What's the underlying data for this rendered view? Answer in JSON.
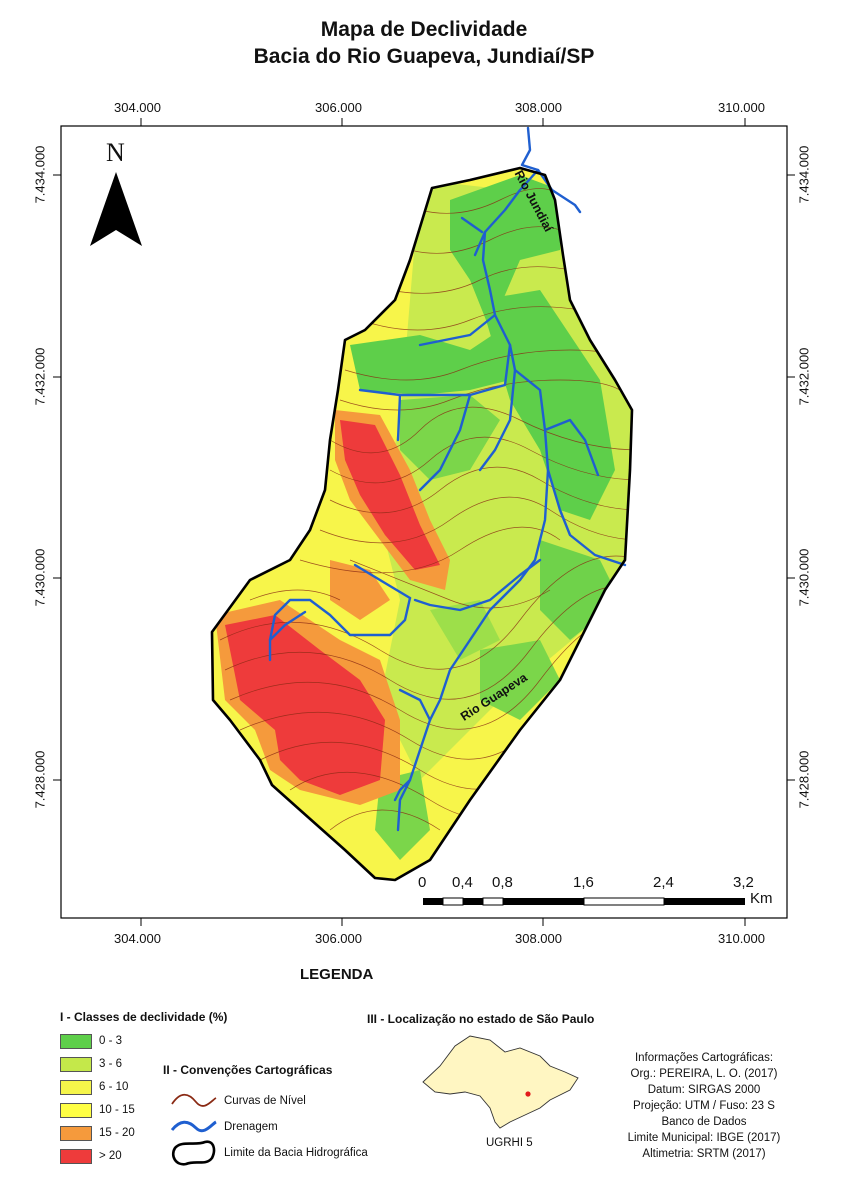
{
  "title_line1": "Mapa de Declividade",
  "title_line2": "Bacia do Rio Guapeva, Jundiaí/SP",
  "north_label": "N",
  "x_ticks": [
    "304.000",
    "306.000",
    "308.000",
    "310.000"
  ],
  "y_ticks": [
    "7.434.000",
    "7.432.000",
    "7.430.000",
    "7.428.000"
  ],
  "river_labels": {
    "jundiai": "Rio Jundiaí",
    "guapeva": "Rio Guapeva"
  },
  "scalebar": {
    "labels": [
      "0",
      "0,4",
      "0,8",
      "1,6",
      "2,4",
      "3,2"
    ],
    "unit": "Km"
  },
  "legend": {
    "heading": "LEGENDA",
    "section1_title": "I - Classes de declividade (%)",
    "classes": [
      {
        "label": "0 - 3",
        "color": "#5ecf4a"
      },
      {
        "label": "3 - 6",
        "color": "#c4e84a"
      },
      {
        "label": "6 - 10",
        "color": "#f5f54a"
      },
      {
        "label": "10 - 15",
        "color": "#ffff44"
      },
      {
        "label": "15 - 20",
        "color": "#f59a3c"
      },
      {
        "label": "> 20",
        "color": "#ee3b3b"
      }
    ],
    "section2_title": "II - Convenções Cartográficas",
    "conventions": [
      "Curvas de Nível",
      "Drenagem",
      "Limite da Bacia Hidrográfica"
    ],
    "section3_title": "III - Localização no estado de São Paulo",
    "inset_label": "UGRHI 5"
  },
  "info": [
    "Informações Cartográficas:",
    "Org.: PEREIRA, L. O. (2017)",
    "Datum: SIRGAS 2000",
    "Projeção: UTM / Fuso: 23 S",
    "Banco de Dados",
    "Limite Municipal: IBGE (2017)",
    "Altimetria: SRTM (2017)"
  ],
  "colors": {
    "contour": "#8a2a14",
    "drainage": "#1f5fd0",
    "boundary": "#000000"
  }
}
